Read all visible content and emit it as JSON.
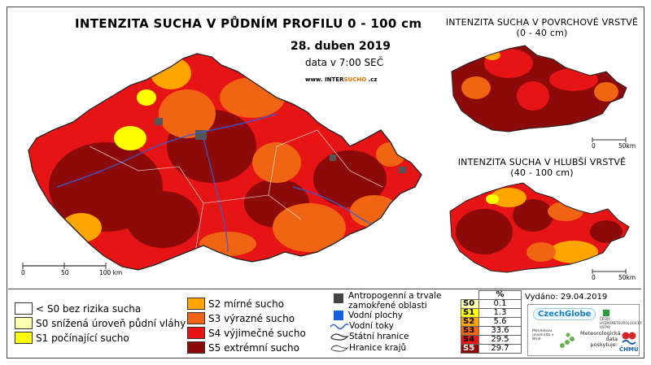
{
  "main_title": "INTENZITA SUCHA V PŮDNÍM PROFILU 0 - 100 cm",
  "date": "28. duben 2019",
  "data_time": "data v 7:00 SEČ",
  "website_prefix": "www.",
  "website_brand_a": "INTER",
  "website_brand_b": "SUCHO",
  "website_suffix": ".cz",
  "surface_title_line1": "INTENZITA SUCHA V POVRCHOVÉ VRSTVĚ",
  "surface_title_line2": "(0 - 40 cm)",
  "deep_title_line1": "INTENZITA SUCHA V HLUBŠÍ VRSTVĚ",
  "deep_title_line2": "(40 - 100 cm)",
  "main_scale": {
    "s0": "0",
    "s1": "50",
    "s2": "100 km"
  },
  "small_scale": {
    "s0": "0",
    "s1": "50km"
  },
  "legend": {
    "classes": [
      {
        "label": "< S0 bez rizika sucha",
        "color": "#ffffff"
      },
      {
        "label": "S0 snížená úroveň půdní vláhy",
        "color": "#ffffb0"
      },
      {
        "label": "S1 počínající sucho",
        "color": "#ffff00"
      },
      {
        "label": "S2 mírné sucho",
        "color": "#ffa500"
      },
      {
        "label": "S3 výrazné sucho",
        "color": "#f06414"
      },
      {
        "label": "S4 výjimečné sucho",
        "color": "#e61414"
      },
      {
        "label": "S5 extrémní sucho",
        "color": "#8c0a0a"
      }
    ],
    "other": {
      "anthropogenic": "Antropogenní a trvale zamokřené oblasti",
      "water_bodies": "Vodní plochy",
      "water_streams": "Vodní toky",
      "state_border": "Státní hranice",
      "region_border": "Hranice krajů"
    }
  },
  "stats": {
    "header": "%",
    "rows": [
      {
        "class": "S0",
        "value": "0.1",
        "color": "#ffffb0"
      },
      {
        "class": "S1",
        "value": "1.3",
        "color": "#ffff00"
      },
      {
        "class": "S2",
        "value": "5.6",
        "color": "#ffa500"
      },
      {
        "class": "S3",
        "value": "33.6",
        "color": "#f06414"
      },
      {
        "class": "S4",
        "value": "29.5",
        "color": "#e61414"
      },
      {
        "class": "S5",
        "value": "29.7",
        "color": "#8c0a0a"
      }
    ]
  },
  "issued": "Vydáno: 29.04.2019",
  "logos": {
    "czechglobe": "CzechGlobe",
    "chmi_mini": "ČESKÝ HYDROMETEOROLOGICKÝ ÚSTAV",
    "mendel": "Mendelova univerzita v Brně",
    "meteo": "Meteorologická data poskytuje:",
    "chmu": "ČHMÚ"
  },
  "colors": {
    "s2": "#ffa500",
    "s3": "#f06414",
    "s4": "#e61414",
    "s5": "#8c0a0a",
    "river": "#3a5bd0",
    "anthro": "#555555"
  }
}
